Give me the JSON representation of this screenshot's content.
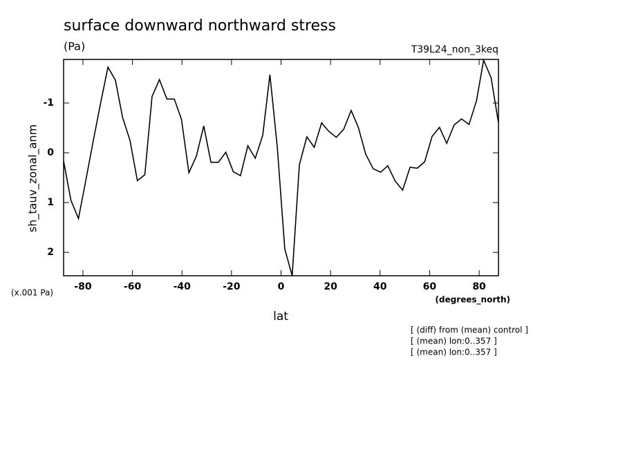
{
  "chart_data": {
    "type": "line",
    "title": "surface downward northward stress",
    "units": "(Pa)",
    "dataset": "T39L24_non_3keq",
    "y_label": "sh_tauv_zonal_anm",
    "y_scale_label": "(x.001 Pa)",
    "x_units": "(degrees_north)",
    "x_label": "lat",
    "notes": [
      "[ (diff) from (mean) control ]",
      "[ (mean) lon:0..357 ]",
      "[ (mean) lon:0..357 ]"
    ],
    "x": [
      -87.8,
      -84.8,
      -81.8,
      -78.9,
      -75.9,
      -72.9,
      -69.9,
      -66.9,
      -64.0,
      -61.0,
      -58.0,
      -55.0,
      -52.1,
      -49.1,
      -46.1,
      -43.1,
      -40.2,
      -37.2,
      -34.2,
      -31.2,
      -28.3,
      -25.3,
      -22.3,
      -19.3,
      -16.4,
      -13.4,
      -10.4,
      -7.4,
      -4.5,
      -1.5,
      1.5,
      4.5,
      7.4,
      10.4,
      13.4,
      16.4,
      19.3,
      22.3,
      25.3,
      28.3,
      31.2,
      34.2,
      37.2,
      40.2,
      43.1,
      46.1,
      49.1,
      52.1,
      55.0,
      58.0,
      61.0,
      64.0,
      66.9,
      69.9,
      72.9,
      75.9,
      78.9,
      81.8,
      84.8,
      87.8
    ],
    "values": [
      0.17,
      0.96,
      1.32,
      0.57,
      -0.22,
      -0.99,
      -1.72,
      -1.46,
      -0.71,
      -0.25,
      0.56,
      0.44,
      -1.13,
      -1.47,
      -1.08,
      -1.08,
      -0.67,
      0.4,
      0.07,
      -0.54,
      0.19,
      0.19,
      -0.01,
      0.38,
      0.46,
      -0.14,
      0.11,
      -0.35,
      -1.57,
      -0.11,
      1.93,
      2.47,
      0.24,
      -0.32,
      -0.11,
      -0.6,
      -0.43,
      -0.31,
      -0.47,
      -0.85,
      -0.51,
      0.03,
      0.32,
      0.39,
      0.26,
      0.57,
      0.75,
      0.29,
      0.31,
      0.18,
      -0.33,
      -0.51,
      -0.19,
      -0.56,
      -0.68,
      -0.57,
      -1.04,
      -1.86,
      -1.51,
      -0.6
    ],
    "color": "#000000",
    "xlim": [
      -87.8,
      87.8
    ],
    "xticks": [
      -80,
      -60,
      -40,
      -20,
      0,
      20,
      40,
      60,
      80
    ],
    "ylim": [
      2.47,
      -1.875
    ],
    "yticks": [
      -1,
      0,
      1,
      2
    ]
  }
}
